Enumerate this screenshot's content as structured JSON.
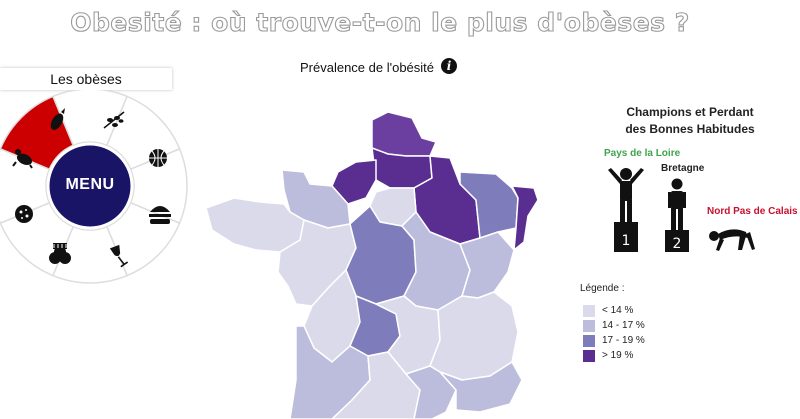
{
  "header": {
    "title": "Obesité : où trouve-t-on le plus d'obèses ?"
  },
  "map": {
    "subtitle": "Prévalence de l'obésité",
    "info_icon": "info-icon",
    "region_fills": {
      "nord_pas_de_calais": "#6b3fa0",
      "picardie": "#5a2d91",
      "haute_normandie": "#5a2d91",
      "champagne_ardenne": "#5a2d91",
      "lorraine": "#7e7cba",
      "alsace": "#5a2d91",
      "ile_de_france": "#dadaeb",
      "basse_normandie": "#bcbddc",
      "bretagne": "#dadaeb",
      "pays_de_la_loire": "#dadaeb",
      "centre": "#7e7cba",
      "bourgogne": "#bcbddc",
      "franche_comte": "#bcbddc",
      "poitou_charentes": "#dadaeb",
      "limousin": "#7e7cba",
      "auvergne": "#dadaeb",
      "rhone_alpes": "#dadaeb",
      "aquitaine": "#bcbddc",
      "midi_pyrenees": "#dadaeb",
      "languedoc_roussillon": "#bcbddc",
      "paca": "#bcbddc"
    }
  },
  "menu": {
    "header": "Les obèses",
    "center_label": "MENU",
    "center_color": "#1a1466",
    "active_color": "#cc0000",
    "items": [
      {
        "icon": "eggplant-icon"
      },
      {
        "icon": "olive-branch-icon"
      },
      {
        "icon": "basketball-icon"
      },
      {
        "icon": "burger-icon"
      },
      {
        "icon": "wine-glass-icon"
      },
      {
        "icon": "cupcake-icon"
      },
      {
        "icon": "salami-icon"
      },
      {
        "icon": "obese-person-icon"
      }
    ]
  },
  "champions": {
    "title_line1": "Champions et Perdant",
    "title_line2": "des Bonnes Habitudes",
    "first": "Pays de la Loire",
    "second": "Bretagne",
    "last": "Nord Pas de Calais",
    "rank1": "1",
    "rank2": "2",
    "first_color": "#3fa34d",
    "last_color": "#c8102e"
  },
  "legend": {
    "title": "Légende :",
    "items": [
      {
        "label": "< 14 %",
        "color": "#dadaeb"
      },
      {
        "label": "14 - 17 %",
        "color": "#bcbddc"
      },
      {
        "label": "17 - 19 %",
        "color": "#7e7cba"
      },
      {
        "label": "> 19 %",
        "color": "#5a2d91"
      }
    ]
  }
}
